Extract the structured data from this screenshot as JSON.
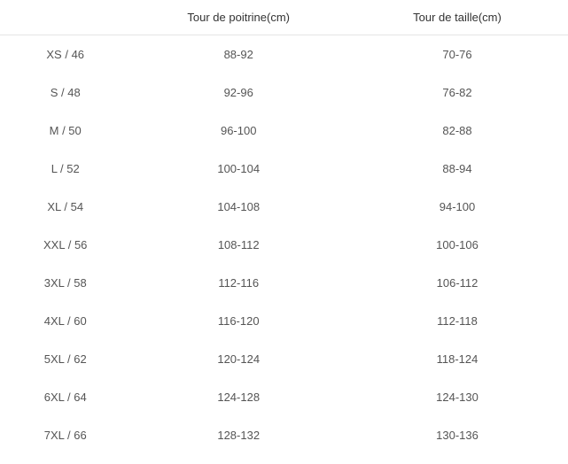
{
  "size_table": {
    "type": "table",
    "columns": [
      "",
      "Tour de poitrine(cm)",
      "Tour de taille(cm)"
    ],
    "rows": [
      [
        "XS / 46",
        "88-92",
        "70-76"
      ],
      [
        "S / 48",
        "92-96",
        "76-82"
      ],
      [
        "M / 50",
        "96-100",
        "82-88"
      ],
      [
        "L / 52",
        "100-104",
        "88-94"
      ],
      [
        "XL / 54",
        "104-108",
        "94-100"
      ],
      [
        "XXL / 56",
        "108-112",
        "100-106"
      ],
      [
        "3XL / 58",
        "112-116",
        "106-112"
      ],
      [
        "4XL / 60",
        "116-120",
        "112-118"
      ],
      [
        "5XL / 62",
        "120-124",
        "118-124"
      ],
      [
        "6XL / 64",
        "124-128",
        "124-130"
      ],
      [
        "7XL / 66",
        "128-132",
        "130-136"
      ]
    ],
    "header_color": "#333333",
    "text_color": "#555555",
    "border_color": "#e5e5e5",
    "background_color": "#ffffff",
    "header_fontsize": 13,
    "cell_fontsize": 13,
    "column_widths": [
      "23%",
      "38%",
      "39%"
    ],
    "text_align": "center"
  }
}
